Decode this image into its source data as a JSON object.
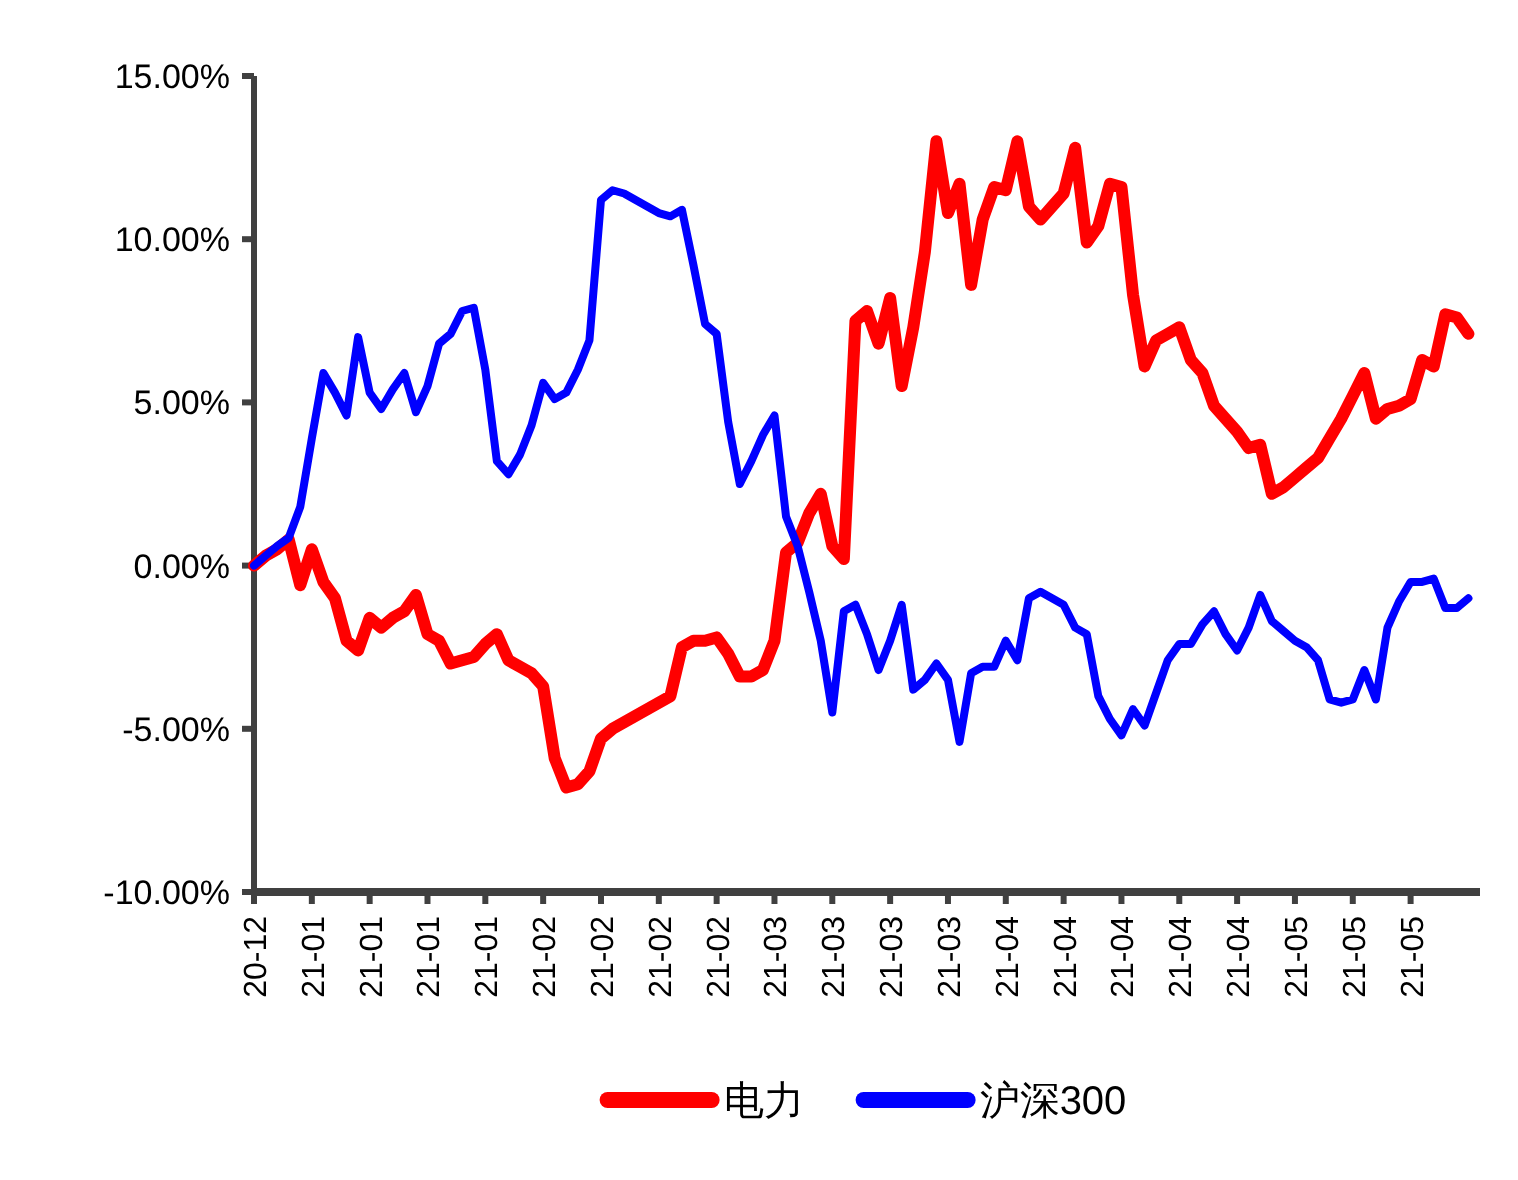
{
  "chart_data": {
    "type": "line",
    "categories": [
      "20-12",
      null,
      null,
      null,
      null,
      "21-01",
      null,
      null,
      null,
      null,
      "21-01",
      null,
      null,
      null,
      null,
      "21-01",
      null,
      null,
      null,
      null,
      "21-01",
      null,
      null,
      null,
      null,
      "21-02",
      null,
      null,
      null,
      null,
      "21-02",
      null,
      null,
      null,
      null,
      "21-02",
      null,
      null,
      null,
      null,
      "21-02",
      null,
      null,
      null,
      null,
      "21-03",
      null,
      null,
      null,
      null,
      "21-03",
      null,
      null,
      null,
      null,
      "21-03",
      null,
      null,
      null,
      null,
      "21-03",
      null,
      null,
      null,
      null,
      "21-04",
      null,
      null,
      null,
      null,
      "21-04",
      null,
      null,
      null,
      null,
      "21-04",
      null,
      null,
      null,
      null,
      "21-04",
      null,
      null,
      null,
      null,
      "21-04",
      null,
      null,
      null,
      null,
      "21-05",
      null,
      null,
      null,
      null,
      "21-05",
      null,
      null,
      null,
      null,
      "21-05",
      null,
      null,
      null,
      null,
      null
    ],
    "series": [
      {
        "name": "电力",
        "color": "#ff0000",
        "values": [
          0,
          0.3,
          0.5,
          0.8,
          -0.6,
          0.5,
          -0.5,
          -1.0,
          -2.3,
          -2.6,
          -1.6,
          -1.9,
          -1.6,
          -1.4,
          -0.9,
          -2.1,
          -2.3,
          -3.0,
          -2.9,
          -2.8,
          -2.4,
          -2.1,
          -2.9,
          -3.1,
          -3.3,
          -3.7,
          -5.9,
          -6.8,
          -6.7,
          -6.3,
          -5.3,
          -5.0,
          -4.8,
          -4.6,
          -4.4,
          -4.2,
          -4.0,
          -2.5,
          -2.3,
          -2.3,
          -2.2,
          -2.7,
          -3.4,
          -3.4,
          -3.2,
          -2.3,
          0.4,
          0.7,
          1.6,
          2.2,
          0.6,
          0.2,
          7.5,
          7.8,
          6.8,
          8.2,
          5.5,
          7.3,
          9.6,
          13.0,
          10.8,
          11.7,
          8.6,
          10.6,
          11.6,
          11.5,
          13.0,
          11.0,
          10.6,
          11.0,
          11.4,
          12.8,
          9.9,
          10.4,
          11.7,
          11.6,
          8.3,
          6.1,
          6.9,
          7.1,
          7.3,
          6.3,
          5.9,
          4.9,
          4.5,
          4.1,
          3.6,
          3.7,
          2.2,
          2.4,
          2.7,
          3.0,
          3.3,
          3.9,
          4.5,
          5.2,
          5.9,
          4.5,
          4.8,
          4.9,
          5.1,
          6.3,
          6.1,
          7.7,
          7.6,
          7.1
        ]
      },
      {
        "name": "沪深300",
        "color": "#0000ff",
        "values": [
          0,
          0.3,
          0.6,
          0.85,
          1.8,
          3.9,
          5.9,
          5.3,
          4.6,
          7.0,
          5.3,
          4.8,
          5.4,
          5.9,
          4.7,
          5.5,
          6.8,
          7.1,
          7.8,
          7.9,
          6.0,
          3.2,
          2.8,
          3.4,
          4.3,
          5.6,
          5.1,
          5.3,
          6.0,
          6.9,
          11.2,
          11.5,
          11.4,
          11.2,
          11.0,
          10.8,
          10.7,
          10.9,
          9.2,
          7.4,
          7.1,
          4.4,
          2.5,
          3.2,
          4.0,
          4.6,
          1.5,
          0.6,
          -0.8,
          -2.3,
          -4.5,
          -1.4,
          -1.2,
          -2.1,
          -3.2,
          -2.3,
          -1.2,
          -3.8,
          -3.5,
          -3.0,
          -3.5,
          -5.4,
          -3.3,
          -3.1,
          -3.1,
          -2.3,
          -2.9,
          -1.0,
          -0.8,
          -1.0,
          -1.2,
          -1.9,
          -2.1,
          -4.0,
          -4.7,
          -5.2,
          -4.4,
          -4.9,
          -3.9,
          -2.9,
          -2.4,
          -2.4,
          -1.8,
          -1.4,
          -2.1,
          -2.6,
          -1.9,
          -0.9,
          -1.7,
          -2.0,
          -2.3,
          -2.5,
          -2.9,
          -4.1,
          -4.2,
          -4.1,
          -3.2,
          -4.1,
          -1.9,
          -1.1,
          -0.5,
          -0.5,
          -0.4,
          -1.3,
          -1.3,
          -1.0
        ]
      }
    ],
    "ylim": [
      -10,
      15
    ],
    "yticks": [
      {
        "value": -10,
        "label": "-10.00%"
      },
      {
        "value": -5,
        "label": "-5.00%"
      },
      {
        "value": 0,
        "label": "0.00%"
      },
      {
        "value": 5,
        "label": "5.00%"
      },
      {
        "value": 10,
        "label": "10.00%"
      },
      {
        "value": 15,
        "label": "15.00%"
      }
    ],
    "legend": "bottom",
    "line_style": "solid",
    "marker": "none"
  }
}
